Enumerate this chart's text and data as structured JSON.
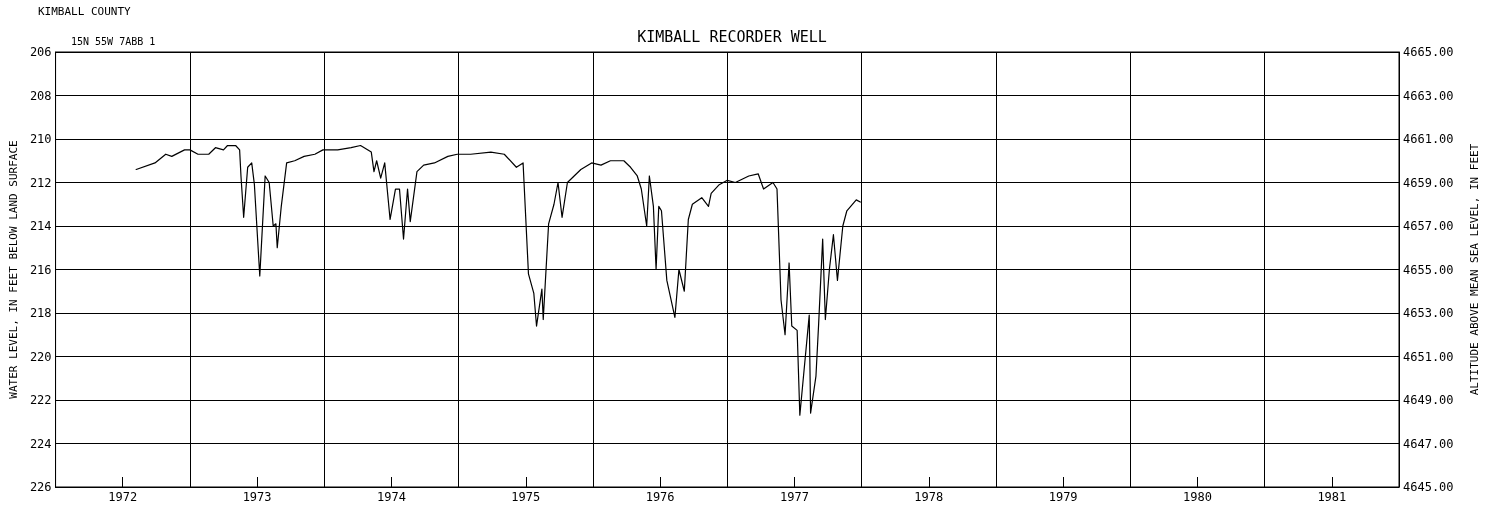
{
  "chart_data": {
    "type": "line",
    "title": "KIMBALL RECORDER WELL",
    "subtitle": "15N 55W 7ABB 1",
    "annotations": [
      "KIMBALL COUNTY"
    ],
    "ylabel": "WATER LEVEL, IN FEET BELOW LAND SURFACE",
    "y2label": "ALTITUDE ABOVE MEAN SEA LEVEL, IN FEET",
    "xlim": [
      1972,
      1982
    ],
    "xticks": [
      {
        "value": 1972,
        "label": null
      },
      {
        "value": 1972.5,
        "label": "1972"
      },
      {
        "value": 1973,
        "label": null
      },
      {
        "value": 1973.5,
        "label": "1973"
      },
      {
        "value": 1974,
        "label": null
      },
      {
        "value": 1974.5,
        "label": "1974"
      },
      {
        "value": 1975,
        "label": null
      },
      {
        "value": 1975.5,
        "label": "1975"
      },
      {
        "value": 1976,
        "label": null
      },
      {
        "value": 1976.5,
        "label": "1976"
      },
      {
        "value": 1977,
        "label": null
      },
      {
        "value": 1977.5,
        "label": "1977"
      },
      {
        "value": 1978,
        "label": null
      },
      {
        "value": 1978.5,
        "label": "1978"
      },
      {
        "value": 1979,
        "label": null
      },
      {
        "value": 1979.5,
        "label": "1979"
      },
      {
        "value": 1980,
        "label": null
      },
      {
        "value": 1980.5,
        "label": "1980"
      },
      {
        "value": 1981,
        "label": null
      },
      {
        "value": 1981.5,
        "label": "1981"
      },
      {
        "value": 1982,
        "label": null
      }
    ],
    "ylim": [
      226,
      206
    ],
    "yticks": [
      206,
      208,
      210,
      212,
      214,
      216,
      218,
      220,
      222,
      224,
      226
    ],
    "y2lim": [
      4645,
      4665
    ],
    "y2ticks": [
      {
        "value": 4645,
        "label": "4645.00"
      },
      {
        "value": 4647,
        "label": "4647.00"
      },
      {
        "value": 4649,
        "label": "4649.00"
      },
      {
        "value": 4651,
        "label": "4651.00"
      },
      {
        "value": 4653,
        "label": "4653.00"
      },
      {
        "value": 4655,
        "label": "4655.00"
      },
      {
        "value": 4657,
        "label": "4657.00"
      },
      {
        "value": 4659,
        "label": "4659.00"
      },
      {
        "value": 4661,
        "label": "4661.00"
      },
      {
        "value": 4663,
        "label": "4663.00"
      },
      {
        "value": 4665,
        "label": "4665.00"
      }
    ],
    "grid": true,
    "marker": "none",
    "line_style": "solid",
    "series": [
      {
        "color": "#000000",
        "x": [
          1972.6,
          1972.74,
          1972.82,
          1972.865,
          1972.96,
          1973.0,
          1973.06,
          1973.14,
          1973.19,
          1973.25,
          1973.28,
          1973.34,
          1973.37,
          1973.38,
          1973.4,
          1973.43,
          1973.46,
          1973.48,
          1973.52,
          1973.56,
          1973.59,
          1973.62,
          1973.64,
          1973.65,
          1973.68,
          1973.72,
          1973.78,
          1973.85,
          1973.93,
          1973.99,
          1974.1,
          1974.2,
          1974.27,
          1974.35,
          1974.37,
          1974.39,
          1974.42,
          1974.45,
          1974.49,
          1974.53,
          1974.56,
          1974.59,
          1974.62,
          1974.64,
          1974.69,
          1974.74,
          1974.82,
          1974.92,
          1974.99,
          1975.09,
          1975.24,
          1975.34,
          1975.43,
          1975.48,
          1975.52,
          1975.56,
          1975.58,
          1975.62,
          1975.63,
          1975.67,
          1975.71,
          1975.74,
          1975.77,
          1975.81,
          1975.91,
          1975.99,
          1976.06,
          1976.13,
          1976.23,
          1976.28,
          1976.33,
          1976.36,
          1976.4,
          1976.42,
          1976.45,
          1976.47,
          1976.49,
          1976.51,
          1976.55,
          1976.61,
          1976.64,
          1976.68,
          1976.71,
          1976.74,
          1976.81,
          1976.86,
          1976.88,
          1976.94,
          1977.0,
          1977.06,
          1977.16,
          1977.23,
          1977.27,
          1977.34,
          1977.37,
          1977.4,
          1977.43,
          1977.46,
          1977.48,
          1977.52,
          1977.54,
          1977.61,
          1977.62,
          1977.66,
          1977.68,
          1977.71,
          1977.73,
          1977.76,
          1977.79,
          1977.82,
          1977.86,
          1977.89,
          1977.96,
          1977.99
        ],
        "values": [
          211.4,
          211.1,
          210.7,
          210.8,
          210.5,
          210.5,
          210.7,
          210.7,
          210.4,
          210.5,
          210.3,
          210.3,
          210.5,
          211.7,
          213.6,
          211.3,
          211.1,
          212.1,
          216.3,
          211.7,
          212.0,
          214.0,
          213.9,
          215.0,
          213.1,
          211.1,
          211.0,
          210.8,
          210.7,
          210.5,
          210.5,
          210.4,
          210.3,
          210.6,
          211.5,
          211.0,
          211.8,
          211.1,
          213.7,
          212.3,
          212.3,
          214.6,
          212.3,
          213.8,
          211.5,
          211.2,
          211.1,
          210.8,
          210.7,
          210.7,
          210.6,
          210.7,
          211.3,
          211.1,
          216.2,
          217.1,
          218.6,
          216.9,
          218.3,
          213.9,
          213.0,
          212.0,
          213.6,
          212.0,
          211.4,
          211.1,
          211.2,
          211.0,
          211.0,
          211.3,
          211.7,
          212.3,
          214.0,
          211.7,
          213.1,
          216.0,
          213.1,
          213.3,
          216.5,
          218.2,
          216.0,
          217.0,
          213.7,
          213.0,
          212.7,
          213.1,
          212.5,
          212.1,
          211.9,
          212.0,
          211.7,
          211.6,
          212.3,
          212.0,
          212.3,
          217.4,
          219.0,
          215.7,
          218.6,
          218.8,
          222.7,
          218.1,
          222.6,
          220.9,
          218.5,
          214.6,
          218.3,
          216.0,
          214.4,
          216.5,
          214.0,
          213.3,
          212.8,
          212.9
        ]
      }
    ]
  }
}
